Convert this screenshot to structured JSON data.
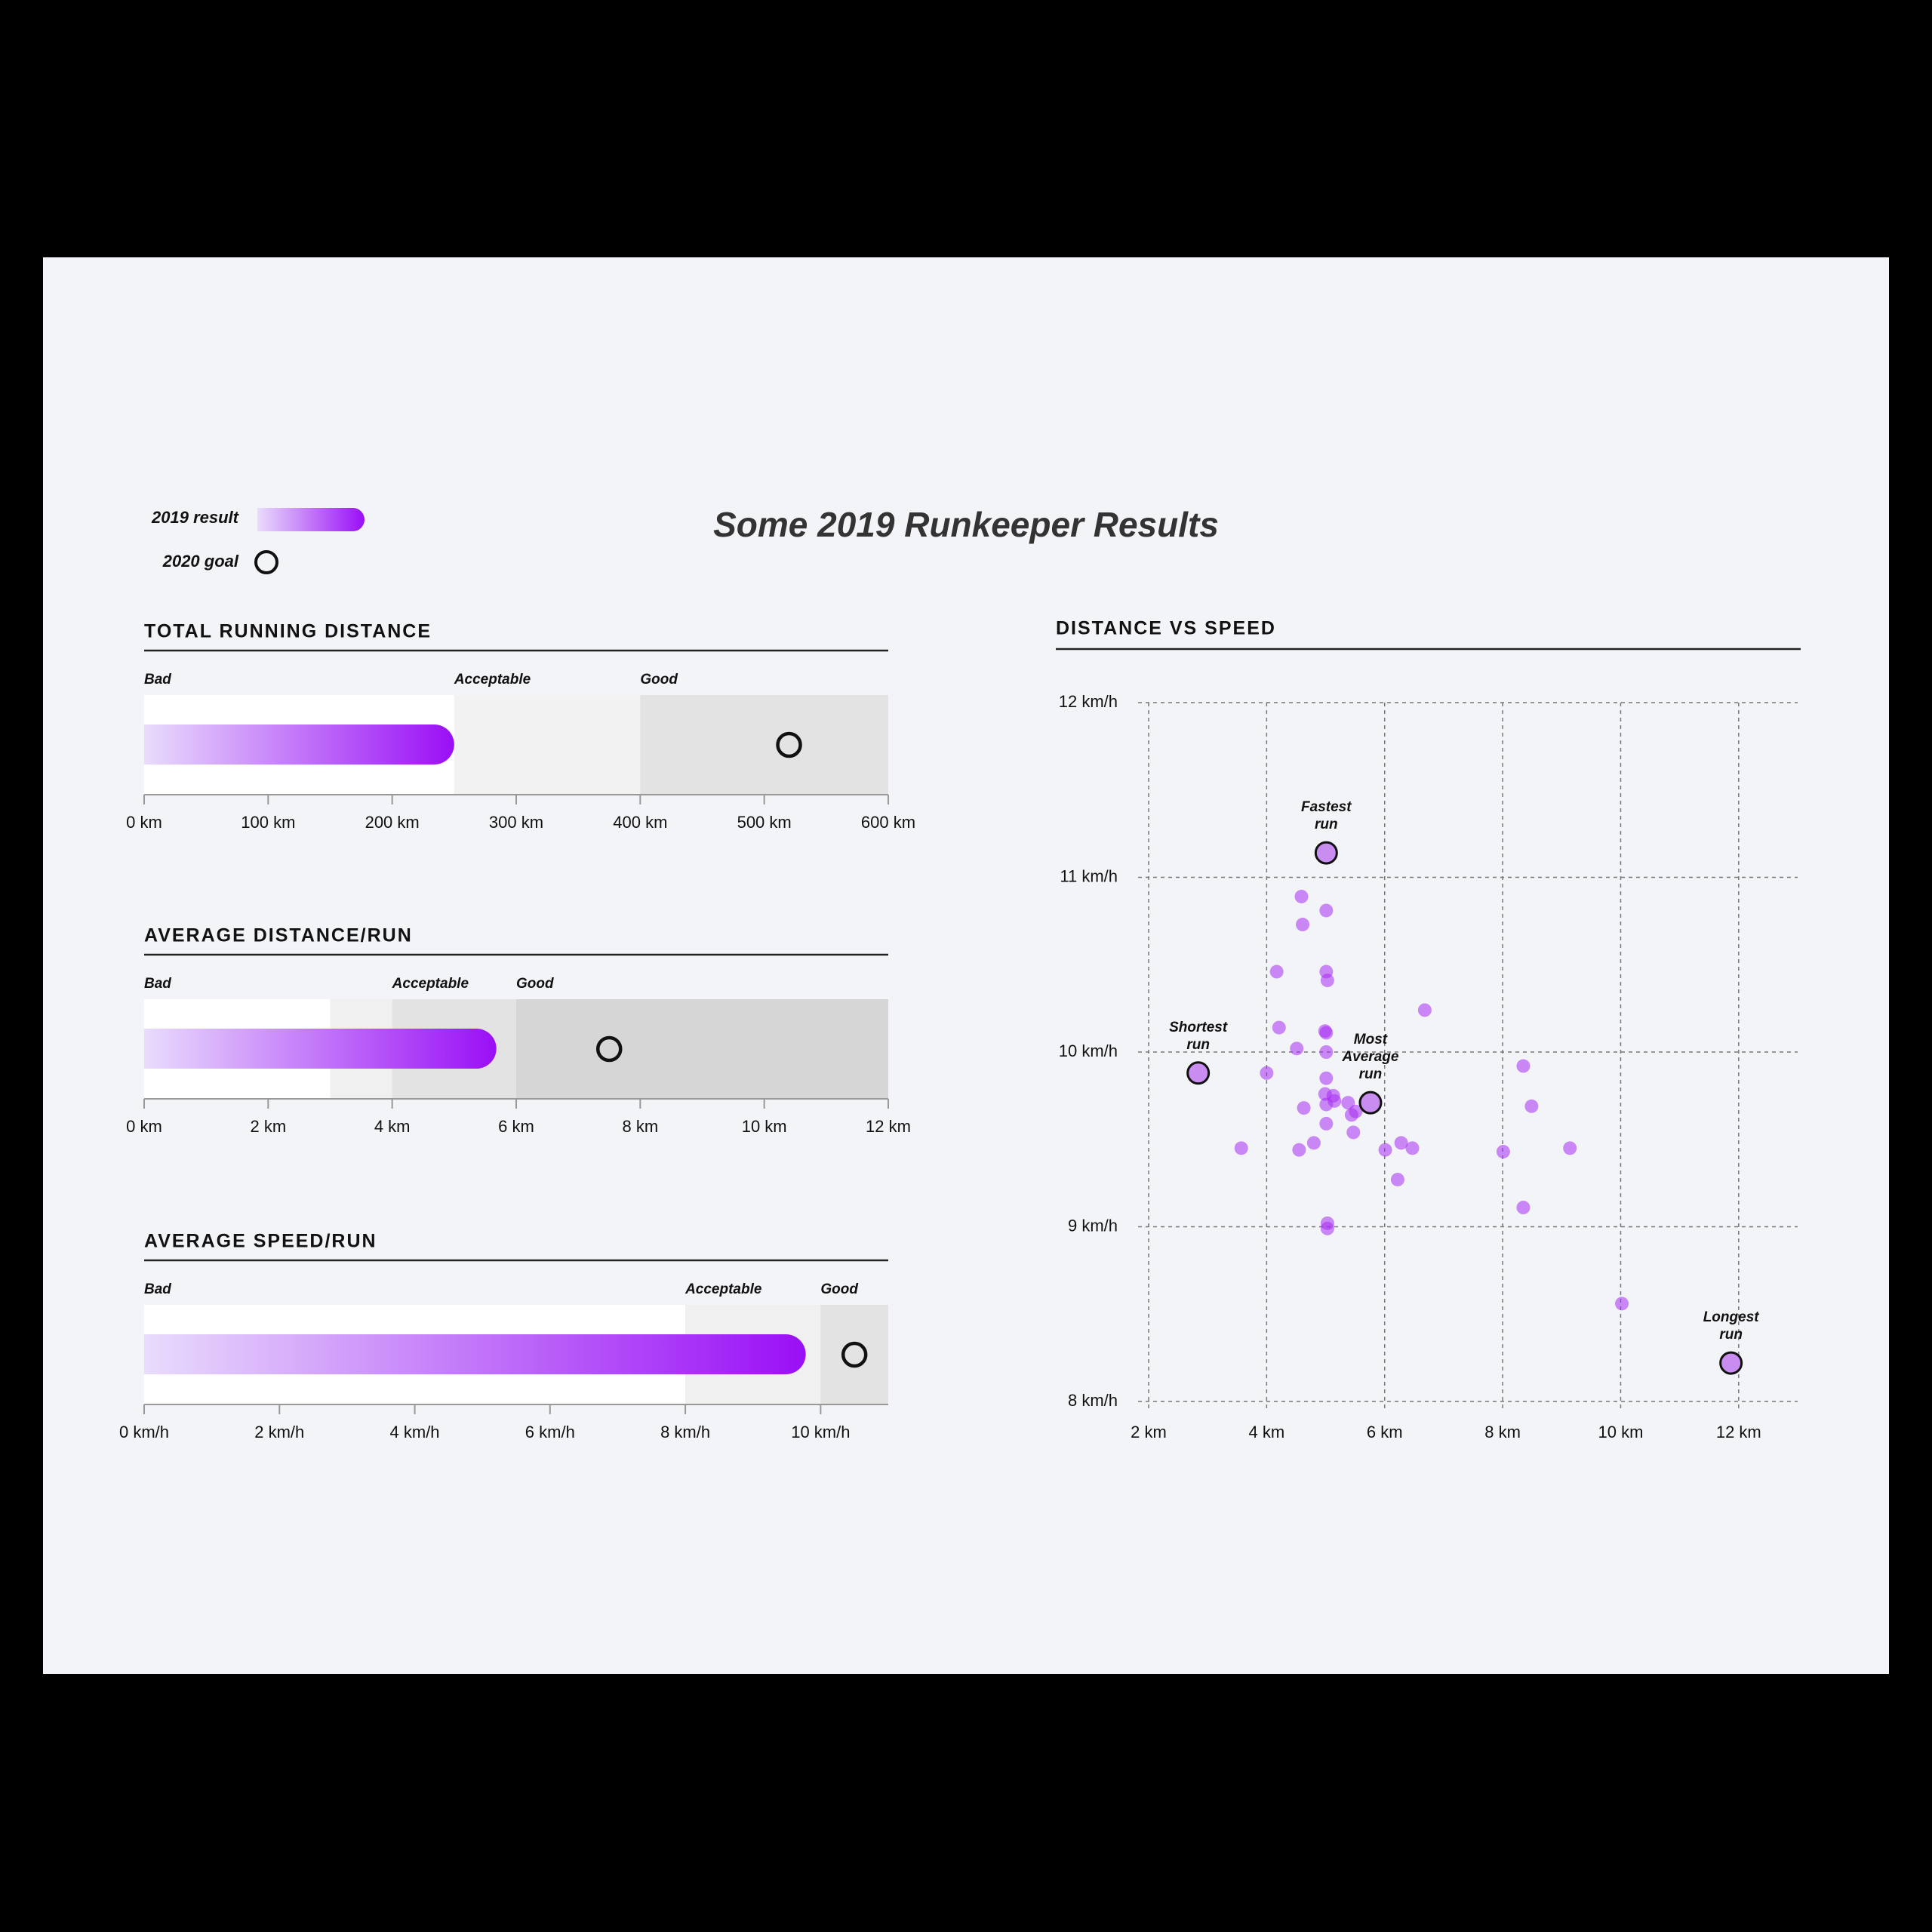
{
  "title": "Some 2019 Runkeeper Results",
  "legend": [
    {
      "label": "2019 result",
      "colors": [
        "#e9dcfc",
        "#9a0ff6"
      ]
    },
    {
      "label": "2020 goal"
    }
  ],
  "chart_data": [
    {
      "type": "bullet",
      "title": "TOTAL RUNNING DISTANCE",
      "value": 250,
      "target": 520,
      "colors": [
        "#e9dcfc",
        "#9a0ff6"
      ],
      "bands": [
        {
          "label": "Bad",
          "from": 0,
          "to": 250,
          "color": "#ffffff"
        },
        {
          "label": "Acceptable",
          "from": 250,
          "to": 400,
          "color": "#f2f2f2"
        },
        {
          "label": "Good",
          "from": 400,
          "to": 600,
          "color": "#e3e3e3"
        }
      ],
      "xlim": [
        0,
        600
      ],
      "xticks": [
        {
          "value": 0,
          "label": "0 km"
        },
        {
          "value": 100,
          "label": "100 km"
        },
        {
          "value": 200,
          "label": "200 km"
        },
        {
          "value": 300,
          "label": "300 km"
        },
        {
          "value": 400,
          "label": "400 km"
        },
        {
          "value": 500,
          "label": "500 km"
        },
        {
          "value": 600,
          "label": "600 km"
        }
      ]
    },
    {
      "type": "bullet",
      "title": "AVERAGE DISTANCE/RUN",
      "value": 5.68,
      "target": 7.5,
      "colors": [
        "#e9dcfc",
        "#9a0ff6"
      ],
      "bands": [
        {
          "label": "Bad",
          "from": 0,
          "to": 3,
          "color": "#ffffff"
        },
        {
          "label": null,
          "from": 3,
          "to": 4,
          "color": "#f0f0f0"
        },
        {
          "label": "Acceptable",
          "from": 4,
          "to": 6,
          "color": "#e3e3e3"
        },
        {
          "label": "Good",
          "from": 6,
          "to": 12,
          "color": "#d6d6d6"
        }
      ],
      "xlim": [
        0,
        12
      ],
      "xticks": [
        {
          "value": 0,
          "label": "0 km"
        },
        {
          "value": 2,
          "label": "2 km"
        },
        {
          "value": 4,
          "label": "4 km"
        },
        {
          "value": 6,
          "label": "6 km"
        },
        {
          "value": 8,
          "label": "8 km"
        },
        {
          "value": 10,
          "label": "10 km"
        },
        {
          "value": 12,
          "label": "12 km"
        }
      ]
    },
    {
      "type": "bullet",
      "title": "AVERAGE SPEED/RUN",
      "value": 9.78,
      "target": 10.5,
      "colors": [
        "#e9dcfc",
        "#9a0ff6"
      ],
      "bands": [
        {
          "label": "Bad",
          "from": 0,
          "to": 8,
          "color": "#ffffff"
        },
        {
          "label": "Acceptable",
          "from": 8,
          "to": 10,
          "color": "#f0f0f0"
        },
        {
          "label": "Good",
          "from": 10,
          "to": 11,
          "color": "#e3e3e3"
        }
      ],
      "xlim": [
        0,
        11
      ],
      "xticks": [
        {
          "value": 0,
          "label": "0 km/h"
        },
        {
          "value": 2,
          "label": "2 km/h"
        },
        {
          "value": 4,
          "label": "4 km/h"
        },
        {
          "value": 6,
          "label": "6 km/h"
        },
        {
          "value": 8,
          "label": "8 km/h"
        },
        {
          "value": 10,
          "label": "10 km/h"
        }
      ]
    },
    {
      "type": "scatter",
      "title": "DISTANCE VS SPEED",
      "color": "#a52cf2",
      "grid": true,
      "x": [
        4.59,
        5.01,
        4.61,
        4.17,
        5.01,
        5.03,
        6.68,
        4.21,
        4.99,
        5.01,
        4.51,
        5.01,
        4.0,
        8.35,
        5.01,
        4.99,
        5.13,
        5.15,
        5.38,
        5.01,
        4.63,
        8.49,
        5.44,
        5.51,
        5.01,
        5.47,
        6.28,
        4.8,
        3.57,
        4.55,
        6.01,
        6.47,
        8.01,
        9.14,
        6.22,
        8.35,
        5.03,
        5.03,
        10.02
      ],
      "y": [
        10.89,
        10.81,
        10.73,
        10.46,
        10.46,
        10.41,
        10.24,
        10.14,
        10.12,
        10.11,
        10.02,
        10.0,
        9.88,
        9.92,
        9.85,
        9.76,
        9.75,
        9.72,
        9.71,
        9.7,
        9.68,
        9.69,
        9.64,
        9.66,
        9.59,
        9.54,
        9.48,
        9.48,
        9.45,
        9.44,
        9.44,
        9.45,
        9.43,
        9.45,
        9.27,
        9.11,
        9.02,
        8.99,
        8.56
      ],
      "annotations": [
        {
          "label": "Fastest run",
          "x": 5.01,
          "y": 11.14
        },
        {
          "label": "Shortest run",
          "x": 2.84,
          "y": 9.88
        },
        {
          "label": "Most Average run",
          "x": 5.76,
          "y": 9.71
        },
        {
          "label": "Longest run",
          "x": 11.87,
          "y": 8.22
        }
      ],
      "highlight_color": "#c98cf0",
      "xlim": [
        2,
        13
      ],
      "ylim": [
        8,
        12
      ],
      "xticks": [
        {
          "value": 2,
          "label": "2 km"
        },
        {
          "value": 4,
          "label": "4 km"
        },
        {
          "value": 6,
          "label": "6 km"
        },
        {
          "value": 8,
          "label": "8 km"
        },
        {
          "value": 10,
          "label": "10 km"
        },
        {
          "value": 12,
          "label": "12 km"
        }
      ],
      "yticks": [
        {
          "value": 8,
          "label": "8 km/h"
        },
        {
          "value": 9,
          "label": "9 km/h"
        },
        {
          "value": 10,
          "label": "10 km/h"
        },
        {
          "value": 11,
          "label": "11 km/h"
        },
        {
          "value": 12,
          "label": "12 km/h"
        }
      ]
    }
  ]
}
